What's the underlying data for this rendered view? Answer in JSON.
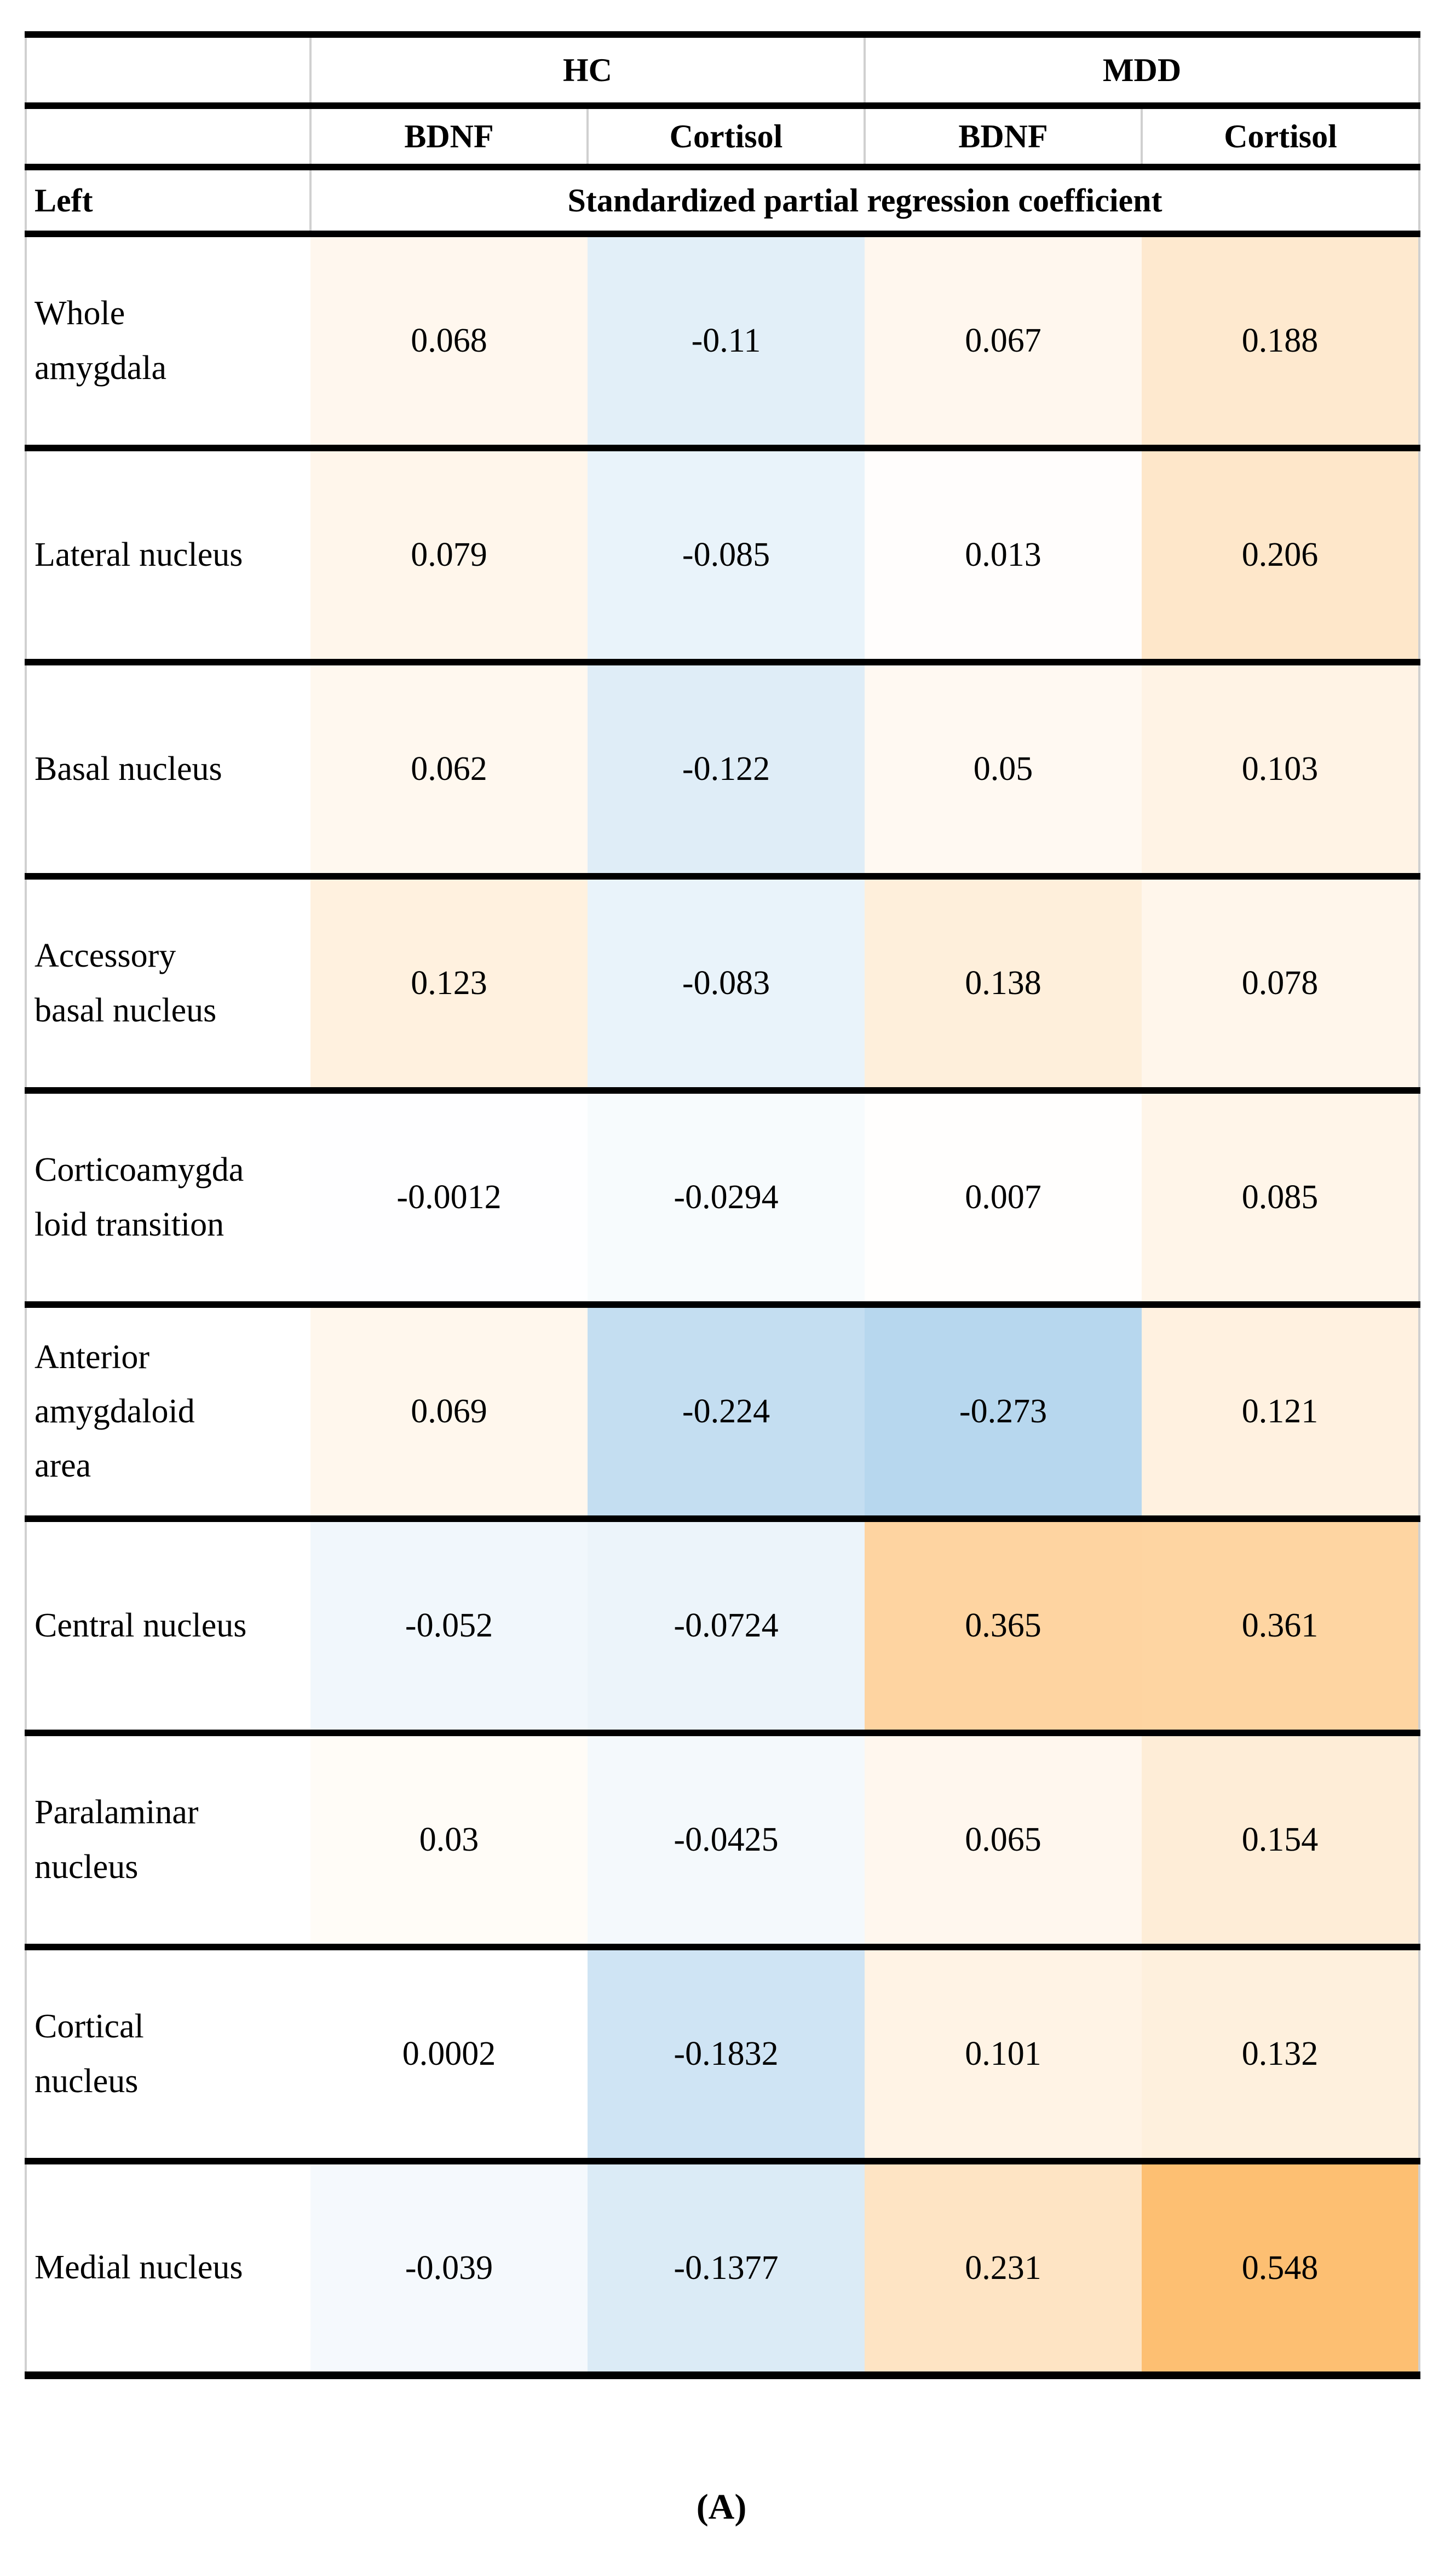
{
  "page": {
    "caption": "(A)"
  },
  "table": {
    "group_headers": [
      "HC",
      "MDD"
    ],
    "measure_headers": [
      "BDNF",
      "Cortisol",
      "BDNF",
      "Cortisol"
    ],
    "side_label": "Left",
    "span_header": "Standardized partial regression coefficient",
    "rows": [
      {
        "label": "Whole amygdala",
        "values": [
          "0.068",
          "-0.11",
          "0.067",
          "0.188"
        ],
        "colors": [
          "#fff7ee",
          "#e2eff8",
          "#fff7ee",
          "#fee9cf"
        ]
      },
      {
        "label": "Lateral nucleus",
        "values": [
          "0.079",
          "-0.085",
          "0.013",
          "0.206"
        ],
        "colors": [
          "#fff6eb",
          "#e9f3fa",
          "#fffdfc",
          "#fee7ca"
        ]
      },
      {
        "label": "Basal nucleus",
        "values": [
          "0.062",
          "-0.122",
          "0.05",
          "0.103"
        ],
        "colors": [
          "#fff8ef",
          "#dfedf7",
          "#fff9f2",
          "#fff3e5"
        ]
      },
      {
        "label": "Accessory basal nucleus",
        "values": [
          "0.123",
          "-0.083",
          "0.138",
          "0.078"
        ],
        "colors": [
          "#fff1df",
          "#e9f3fa",
          "#feefdb",
          "#fff6eb"
        ]
      },
      {
        "label": "Corticoamygdaloid transition",
        "values": [
          "-0.0012",
          "-0.0294",
          "0.007",
          "0.085"
        ],
        "colors": [
          "#fefeff",
          "#f7fbfd",
          "#fffefd",
          "#fff5e9"
        ]
      },
      {
        "label": "Anterior amygdaloid area",
        "values": [
          "0.069",
          "-0.224",
          "-0.273",
          "0.121"
        ],
        "colors": [
          "#fff7ed",
          "#c4def1",
          "#b7d7ee",
          "#fff1e0"
        ]
      },
      {
        "label": "Central nucleus",
        "values": [
          "-0.052",
          "-0.0724",
          "0.365",
          "0.361"
        ],
        "colors": [
          "#f1f7fc",
          "#ecf4fa",
          "#fed4a1",
          "#fed5a2"
        ]
      },
      {
        "label": "Paralaminar nucleus",
        "values": [
          "0.03",
          "-0.0425",
          "0.065",
          "0.154"
        ],
        "colors": [
          "#fffcf7",
          "#f4f9fc",
          "#fff7ee",
          "#feedd7"
        ]
      },
      {
        "label": "Cortical nucleus",
        "values": [
          "0.0002",
          "-0.1832",
          "0.101",
          "0.132"
        ],
        "colors": [
          "#ffffff",
          "#cfe4f4",
          "#fff3e5",
          "#fef0dd"
        ]
      },
      {
        "label": "Medial nucleus",
        "values": [
          "-0.039",
          "-0.1377",
          "0.231",
          "0.548"
        ],
        "colors": [
          "#f5f9fd",
          "#dbebf6",
          "#fee4c4",
          "#fdbf72"
        ]
      }
    ]
  },
  "chart_data": {
    "type": "heatmap",
    "title": "Standardized partial regression coefficient",
    "hemisphere": "Left",
    "panel_label": "(A)",
    "columns": [
      "HC BDNF",
      "HC Cortisol",
      "MDD BDNF",
      "MDD Cortisol"
    ],
    "rows": [
      "Whole amygdala",
      "Lateral nucleus",
      "Basal nucleus",
      "Accessory basal nucleus",
      "Corticoamygdaloid transition",
      "Anterior amygdaloid area",
      "Central nucleus",
      "Paralaminar nucleus",
      "Cortical nucleus",
      "Medial nucleus"
    ],
    "values": [
      [
        0.068,
        -0.11,
        0.067,
        0.188
      ],
      [
        0.079,
        -0.085,
        0.013,
        0.206
      ],
      [
        0.062,
        -0.122,
        0.05,
        0.103
      ],
      [
        0.123,
        -0.083,
        0.138,
        0.078
      ],
      [
        -0.0012,
        -0.0294,
        0.007,
        0.085
      ],
      [
        0.069,
        -0.224,
        -0.273,
        0.121
      ],
      [
        -0.052,
        -0.0724,
        0.365,
        0.361
      ],
      [
        0.03,
        -0.0425,
        0.065,
        0.154
      ],
      [
        0.0002,
        -0.1832,
        0.101,
        0.132
      ],
      [
        -0.039,
        -0.1377,
        0.231,
        0.548
      ]
    ],
    "colorscale": {
      "min": {
        "value": -0.273,
        "color": "#b7d7ee"
      },
      "mid": {
        "value": 0,
        "color": "#ffffff"
      },
      "max": {
        "value": 0.548,
        "color": "#fdbf72"
      }
    },
    "legend_position": "none",
    "grid": true
  },
  "colors": {
    "rule_black": "#000000",
    "grid_gray": "#d0d0d0",
    "background": "#ffffff"
  }
}
